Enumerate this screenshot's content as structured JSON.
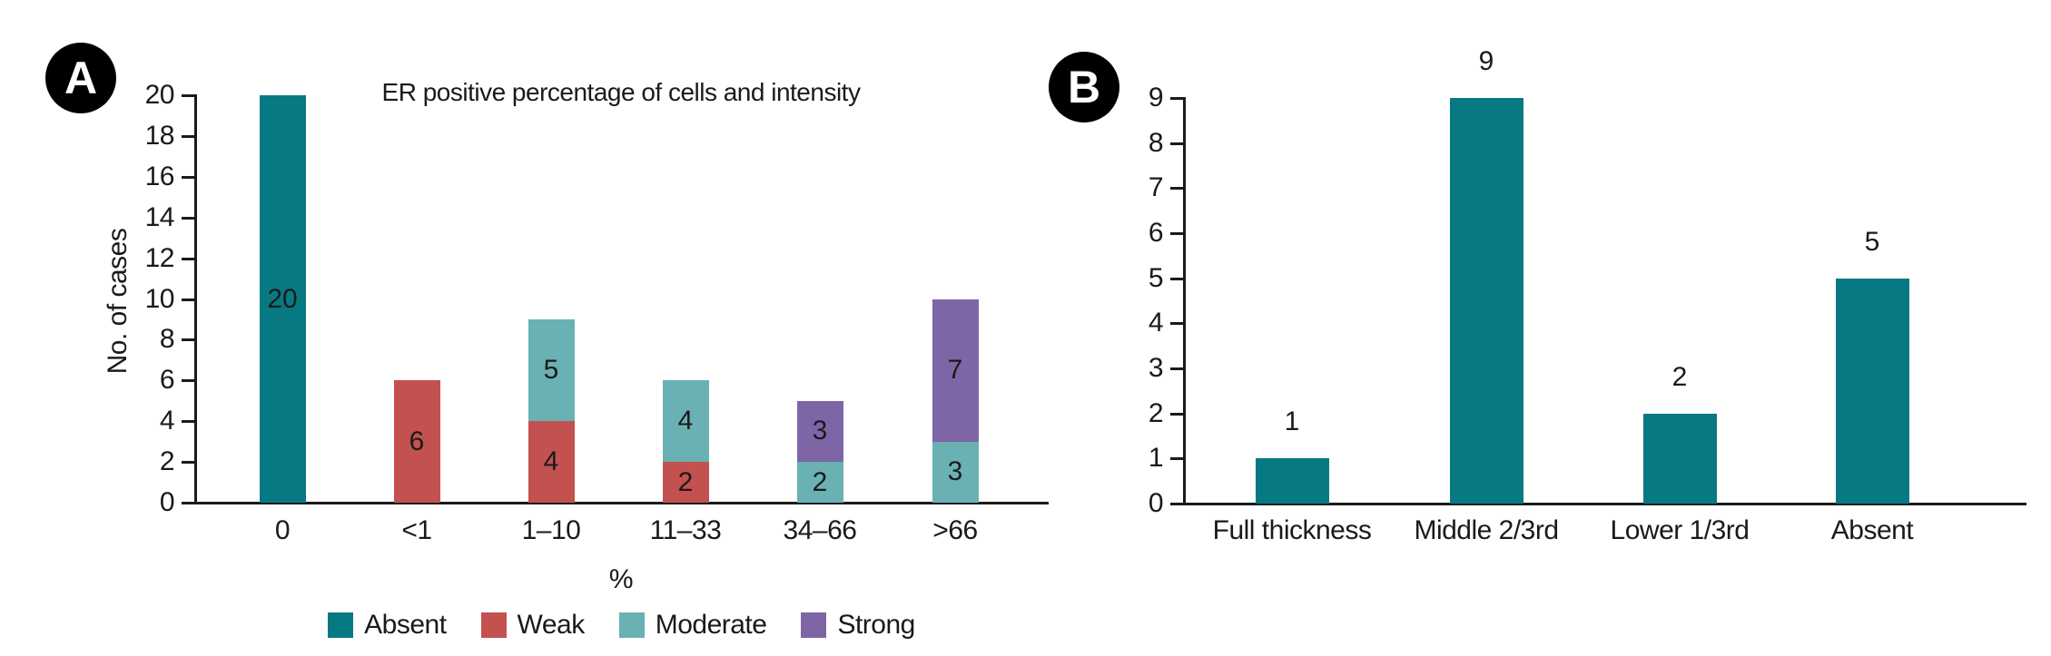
{
  "figure": {
    "background": "#ffffff"
  },
  "colors": {
    "teal": "#077982",
    "red": "#c25150",
    "light_teal": "#6ab1b4",
    "purple": "#7e66a6",
    "axis": "#1a1a1a",
    "text": "#1a1a1a",
    "badge_bg": "#000000",
    "badge_fg": "#ffffff"
  },
  "panels": {
    "a": {
      "badge": "A",
      "title": "ER positive percentage of cells and intensity",
      "ylabel": "No. of cases",
      "xlabel": "%"
    },
    "b": {
      "badge": "B"
    }
  },
  "chart_data": [
    {
      "id": "A",
      "type": "bar",
      "stacked": true,
      "title": "ER positive percentage of cells and intensity",
      "xlabel": "%",
      "ylabel": "No. of cases",
      "ylim": [
        0,
        20
      ],
      "ytick_step": 2,
      "grid": false,
      "categories": [
        "0",
        "<1",
        "1–10",
        "11–33",
        "34–66",
        ">66"
      ],
      "series": [
        {
          "name": "Absent",
          "color": "teal",
          "values": [
            20,
            0,
            0,
            0,
            0,
            0
          ]
        },
        {
          "name": "Weak",
          "color": "red",
          "values": [
            0,
            6,
            4,
            2,
            0,
            0
          ]
        },
        {
          "name": "Moderate",
          "color": "light_teal",
          "values": [
            0,
            0,
            5,
            4,
            2,
            3
          ]
        },
        {
          "name": "Strong",
          "color": "purple",
          "values": [
            0,
            0,
            0,
            0,
            3,
            7
          ]
        }
      ],
      "segment_labels": "inside",
      "legend_position": "bottom",
      "legend_entries": [
        "Absent",
        "Weak",
        "Moderate",
        "Strong"
      ]
    },
    {
      "id": "B",
      "type": "bar",
      "stacked": false,
      "ylim": [
        0,
        9
      ],
      "ytick_step": 1,
      "grid": false,
      "categories": [
        "Full thickness",
        "Middle 2/3rd",
        "Lower 1/3rd",
        "Absent"
      ],
      "values": [
        1,
        9,
        2,
        5
      ],
      "bar_color": "teal",
      "value_labels": "above"
    }
  ]
}
